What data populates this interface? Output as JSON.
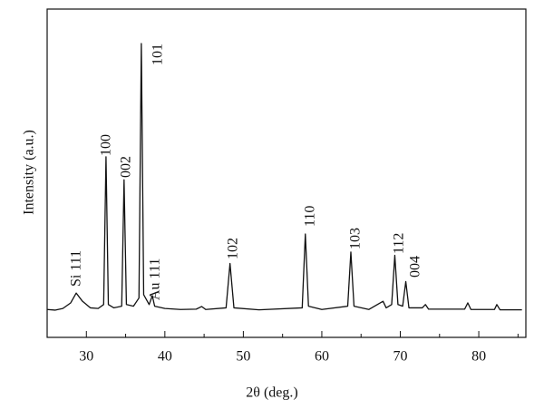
{
  "chart_data": {
    "type": "line",
    "x_label": "2θ (deg.)",
    "y_label": "Intensity (a.u.)",
    "xlim": [
      25,
      86
    ],
    "ylim": [
      0,
      100
    ],
    "xticks": [
      30,
      40,
      50,
      60,
      70,
      80
    ],
    "xminorticks": [
      25,
      35,
      45,
      55,
      65,
      75,
      85
    ],
    "annotations": [
      "Si 111",
      "100",
      "002",
      "101",
      "Au 111",
      "102",
      "110",
      "103",
      "112",
      "004"
    ],
    "series": [
      {
        "color": "#111111",
        "x": [
          25,
          26,
          27,
          28,
          28.7,
          29.5,
          30.5,
          31.5,
          32.2,
          32.5,
          32.8,
          33.5,
          34.5,
          34.8,
          35.1,
          36,
          36.7,
          37.0,
          37.3,
          38.0,
          38.4,
          38.7,
          40,
          42,
          44,
          44.7,
          45.2,
          47.8,
          48.3,
          48.8,
          52,
          57.5,
          57.9,
          58.3,
          60,
          63.3,
          63.7,
          64.1,
          66,
          67.8,
          68.2,
          68.9,
          69.3,
          69.7,
          70.3,
          70.7,
          71.1,
          72.8,
          73.2,
          73.6,
          78.2,
          78.6,
          79,
          82,
          82.3,
          82.7,
          85.5
        ],
        "values": [
          8.5,
          8.3,
          8.8,
          10.5,
          13.5,
          11,
          9,
          8.8,
          10,
          55,
          10,
          9,
          9.5,
          48,
          10,
          9.5,
          12,
          89.5,
          13,
          10,
          12.7,
          9.5,
          8.8,
          8.5,
          8.6,
          9.4,
          8.5,
          9,
          22.5,
          9,
          8.4,
          9,
          31.5,
          9.5,
          8.5,
          9.5,
          26,
          9.5,
          8.5,
          11,
          9,
          10,
          25,
          10,
          9.5,
          17,
          9,
          9,
          10,
          8.6,
          8.6,
          10.5,
          8.5,
          8.5,
          10,
          8.4,
          8.4
        ]
      }
    ]
  }
}
